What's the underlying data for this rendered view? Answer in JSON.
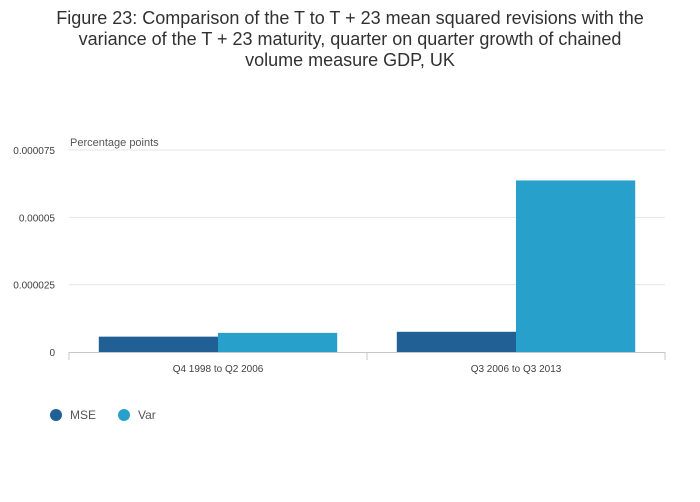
{
  "chart_data": {
    "type": "bar",
    "title_lines": [
      "Figure 23: Comparison of the T to T + 23 mean squared revisions with the",
      "variance of the T + 23 maturity, quarter on quarter growth of chained",
      "volume measure GDP, UK"
    ],
    "ylabel": "Percentage points",
    "ylim": [
      0,
      7.5e-05
    ],
    "yticks": [
      "0",
      "0.000025",
      "0.00005",
      "0.000075"
    ],
    "ytick_values": [
      0,
      2.5e-05,
      5e-05,
      7.5e-05
    ],
    "categories": [
      "Q4 1998 to Q2 2006",
      "Q3 2006 to Q3 2013"
    ],
    "series": [
      {
        "name": "MSE",
        "color": "#206095",
        "values": [
          5.7e-06,
          7.5e-06
        ]
      },
      {
        "name": "Var",
        "color": "#27a0cc",
        "values": [
          7.1e-06,
          6.37e-05
        ]
      }
    ],
    "grid": true,
    "legend_position": "bottom-left"
  }
}
